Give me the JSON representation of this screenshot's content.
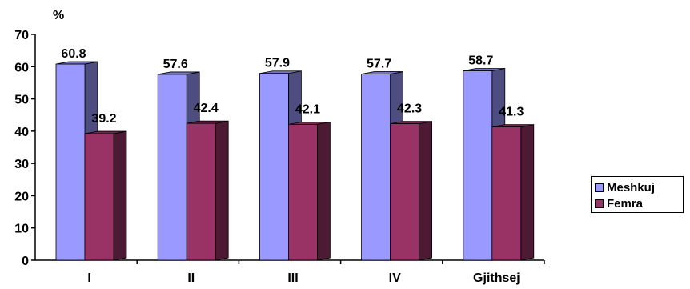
{
  "chart_data": {
    "type": "bar",
    "title": "",
    "ylabel": "%",
    "xlabel": "",
    "categories": [
      "I",
      "II",
      "III",
      "IV",
      "Gjithsej"
    ],
    "series": [
      {
        "name": "Meshkuj",
        "values": [
          60.8,
          57.6,
          57.9,
          57.7,
          58.7
        ],
        "color": "#9999ff"
      },
      {
        "name": "Femra",
        "values": [
          39.2,
          42.4,
          42.1,
          42.3,
          41.3
        ],
        "color": "#993366"
      }
    ],
    "ylim": [
      0,
      70
    ],
    "yticks": [
      "0",
      "10",
      "20",
      "30",
      "40",
      "50",
      "60",
      "70"
    ],
    "data_labels": [
      [
        "60.8",
        "57.6",
        "57.9",
        "57.7",
        "58.7"
      ],
      [
        "39.2",
        "42.4",
        "42.1",
        "42.3",
        "41.3"
      ]
    ],
    "grid": false,
    "legend_position": "right",
    "style": "3d-clustered-column"
  }
}
